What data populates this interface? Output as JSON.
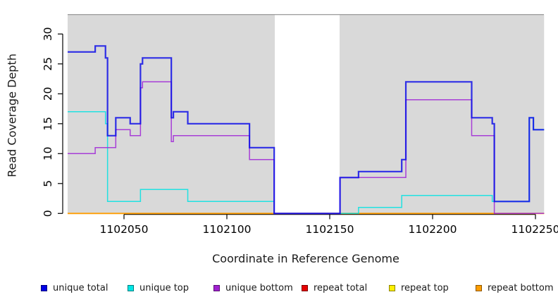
{
  "chart_data": {
    "type": "line",
    "subtype": "step-coverage-plot",
    "title": "",
    "xlabel": "Coordinate in Reference Genome",
    "ylabel": "Read Coverage Depth",
    "xlim": [
      1102022.6,
      1102254.2
    ],
    "ylim": [
      0,
      33.3
    ],
    "x_ticks": [
      1102050,
      1102100,
      1102150,
      1102200,
      1102250
    ],
    "y_ticks": [
      0,
      5,
      10,
      15,
      20,
      25,
      30
    ],
    "grid": false,
    "legend_position": "bottom",
    "background": {
      "band_color": "#d9d9d9",
      "bands": [
        [
          1102022.6,
          1102123.3
        ],
        [
          1102154.8,
          1102254.2
        ]
      ],
      "gap": [
        1102123.3,
        1102154.8
      ],
      "top_rule_color": "#a0a0a0"
    },
    "series": [
      {
        "name": "repeat total",
        "color": "#e00000",
        "width": 1.5,
        "opacity": 1,
        "points": [
          [
            1102022.6,
            0
          ]
        ]
      },
      {
        "name": "repeat top",
        "color": "#ffee00",
        "width": 1.5,
        "opacity": 1,
        "points": [
          [
            1102022.6,
            0
          ]
        ]
      },
      {
        "name": "repeat bottom",
        "color": "#ff9d00",
        "width": 1.9,
        "opacity": 1,
        "points": [
          [
            1102022.6,
            0
          ]
        ]
      },
      {
        "name": "unique top",
        "color": "#00e2e2",
        "width": 1.5,
        "opacity": 0.85,
        "points": [
          [
            1102022.6,
            17
          ],
          [
            1102041,
            15
          ],
          [
            1102042,
            2
          ],
          [
            1102058,
            4
          ],
          [
            1102081,
            2
          ],
          [
            1102123,
            0
          ],
          [
            1102164,
            1
          ],
          [
            1102185,
            3
          ],
          [
            1102229,
            2
          ],
          [
            1102247,
            16
          ],
          [
            1102249,
            14
          ]
        ]
      },
      {
        "name": "unique bottom",
        "color": "#a12cd6",
        "width": 1.5,
        "opacity": 0.9,
        "points": [
          [
            1102022.6,
            10
          ],
          [
            1102036,
            11
          ],
          [
            1102046,
            14
          ],
          [
            1102053,
            13
          ],
          [
            1102058,
            21
          ],
          [
            1102059,
            22
          ],
          [
            1102073,
            12
          ],
          [
            1102074,
            13
          ],
          [
            1102111,
            9
          ],
          [
            1102123,
            0
          ],
          [
            1102155,
            6
          ],
          [
            1102187,
            19
          ],
          [
            1102219,
            13
          ],
          [
            1102230,
            0
          ]
        ]
      },
      {
        "name": "unique total",
        "color": "#0f0fe8",
        "width": 2.2,
        "opacity": 0.85,
        "points": [
          [
            1102022.6,
            27
          ],
          [
            1102036,
            28
          ],
          [
            1102041,
            26
          ],
          [
            1102042,
            13
          ],
          [
            1102046,
            16
          ],
          [
            1102053,
            15
          ],
          [
            1102058,
            25
          ],
          [
            1102059,
            26
          ],
          [
            1102073,
            16
          ],
          [
            1102074,
            17
          ],
          [
            1102081,
            15
          ],
          [
            1102111,
            11
          ],
          [
            1102123,
            0
          ],
          [
            1102155,
            6
          ],
          [
            1102164,
            7
          ],
          [
            1102185,
            9
          ],
          [
            1102187,
            22
          ],
          [
            1102219,
            16
          ],
          [
            1102229,
            15
          ],
          [
            1102230,
            2
          ],
          [
            1102247,
            16
          ],
          [
            1102249,
            14
          ]
        ]
      }
    ]
  },
  "legend": {
    "items": [
      {
        "label": "unique total",
        "color": "#0000e6"
      },
      {
        "label": "unique top",
        "color": "#00e6e6"
      },
      {
        "label": "unique bottom",
        "color": "#a020d0"
      },
      {
        "label": "repeat total",
        "color": "#e60000"
      },
      {
        "label": "repeat top",
        "color": "#fff000"
      },
      {
        "label": "repeat bottom",
        "color": "#ff9d00"
      }
    ]
  }
}
